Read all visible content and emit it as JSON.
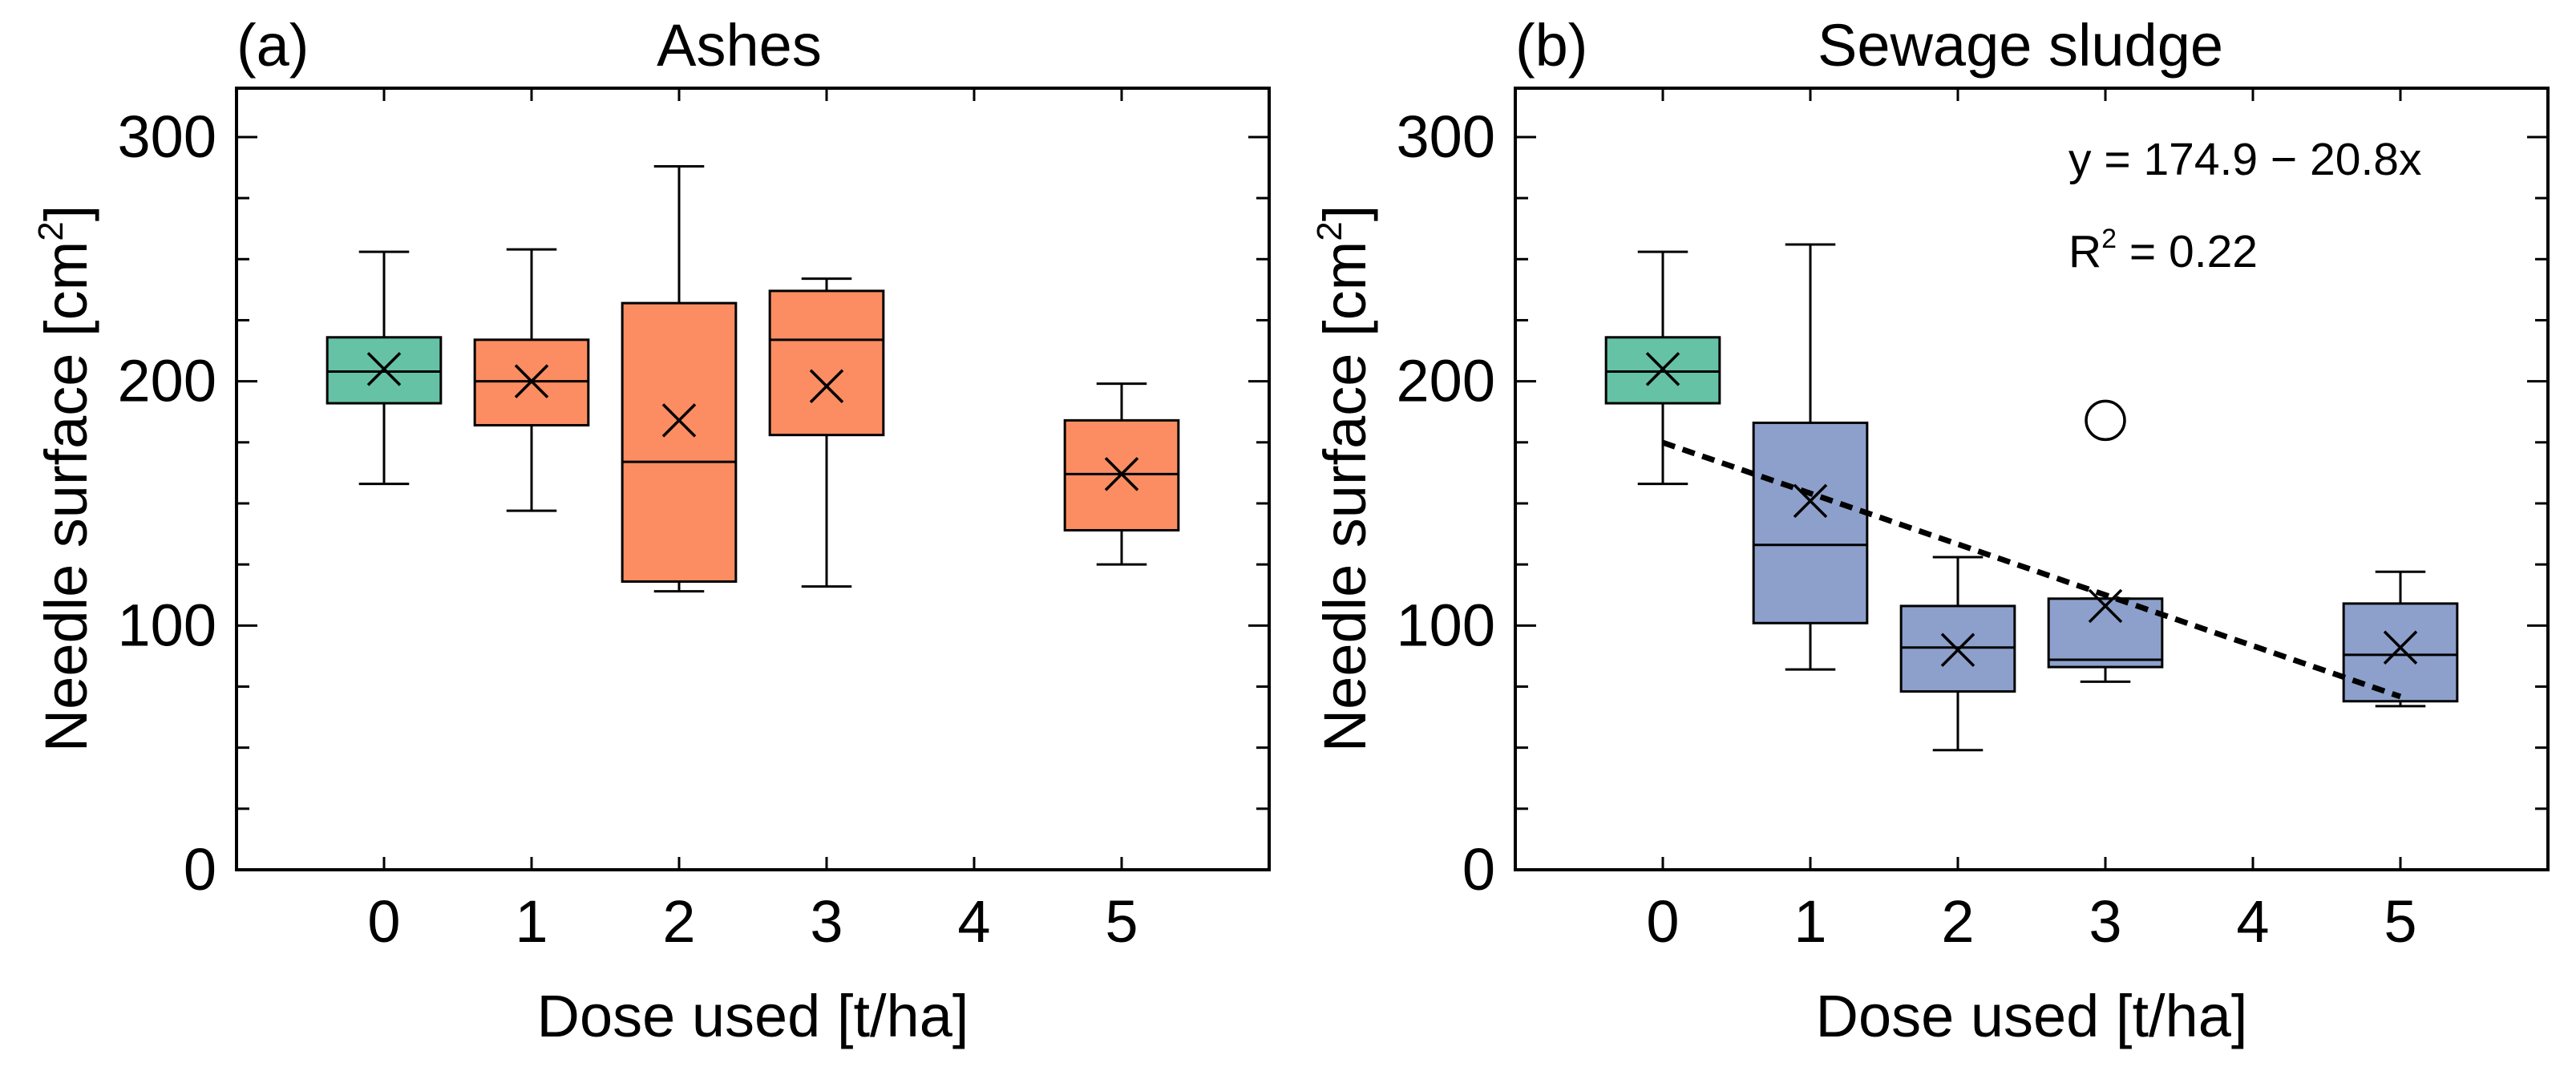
{
  "chart_data": [
    {
      "type": "box",
      "panel_label": "(a)",
      "title": "Ashes",
      "xlabel": "Dose used [t/ha]",
      "ylabel": "Needle surface [cm",
      "ylabel_sup": "2",
      "ylabel_end": "]",
      "ylim": [
        0,
        320
      ],
      "yticks": [
        0,
        100,
        200,
        300
      ],
      "ytick_labels": [
        "0",
        "100",
        "200",
        "300"
      ],
      "xlim": [
        -1,
        6
      ],
      "xticks": [
        0,
        1,
        2,
        3,
        4,
        5
      ],
      "xtick_labels": [
        "0",
        "1",
        "2",
        "3",
        "4",
        "5"
      ],
      "boxes": [
        {
          "x": 0,
          "min": 158,
          "q1": 191,
          "median": 204,
          "q3": 218,
          "max": 253,
          "mean": 205,
          "color": "#66c2a5"
        },
        {
          "x": 1,
          "min": 147,
          "q1": 182,
          "median": 200,
          "q3": 217,
          "max": 254,
          "mean": 200,
          "color": "#fc8d62"
        },
        {
          "x": 2,
          "min": 114,
          "q1": 118,
          "median": 167,
          "q3": 232,
          "max": 288,
          "mean": 184,
          "color": "#fc8d62"
        },
        {
          "x": 3,
          "min": 116,
          "q1": 178,
          "median": 217,
          "q3": 237,
          "max": 242,
          "mean": 198,
          "color": "#fc8d62"
        },
        {
          "x": 5,
          "min": 125,
          "q1": 139,
          "median": 162,
          "q3": 184,
          "max": 199,
          "mean": 162,
          "color": "#fc8d62"
        }
      ],
      "outliers": []
    },
    {
      "type": "box",
      "panel_label": "(b)",
      "title": "Sewage sludge",
      "xlabel": "Dose used [t/ha]",
      "ylabel": "Needle surface [cm",
      "ylabel_sup": "2",
      "ylabel_end": "]",
      "ylim": [
        0,
        320
      ],
      "yticks": [
        0,
        100,
        200,
        300
      ],
      "ytick_labels": [
        "0",
        "100",
        "200",
        "300"
      ],
      "xlim": [
        -1,
        6
      ],
      "xticks": [
        0,
        1,
        2,
        3,
        4,
        5
      ],
      "xtick_labels": [
        "0",
        "1",
        "2",
        "3",
        "4",
        "5"
      ],
      "boxes": [
        {
          "x": 0,
          "min": 158,
          "q1": 191,
          "median": 204,
          "q3": 218,
          "max": 253,
          "mean": 205,
          "color": "#66c2a5"
        },
        {
          "x": 1,
          "min": 82,
          "q1": 101,
          "median": 133,
          "q3": 183,
          "max": 256,
          "mean": 151,
          "color": "#8da0cb"
        },
        {
          "x": 2,
          "min": 49,
          "q1": 73,
          "median": 91,
          "q3": 108,
          "max": 128,
          "mean": 90,
          "color": "#8da0cb"
        },
        {
          "x": 3,
          "min": 77,
          "q1": 83,
          "median": 86,
          "q3": 111,
          "max": 111,
          "mean": 108,
          "color": "#8da0cb"
        },
        {
          "x": 5,
          "min": 67,
          "q1": 69,
          "median": 88,
          "q3": 109,
          "max": 122,
          "mean": 91,
          "color": "#8da0cb"
        }
      ],
      "outliers": [
        {
          "x": 3,
          "y": 184
        }
      ],
      "regression": {
        "intercept": 174.9,
        "slope": -20.8,
        "x_range": [
          0,
          5
        ]
      },
      "equation_text": "y = 174.9 − 20.8x",
      "r2_prefix": "R",
      "r2_sup": "2",
      "r2_suffix": " = 0.22"
    }
  ]
}
